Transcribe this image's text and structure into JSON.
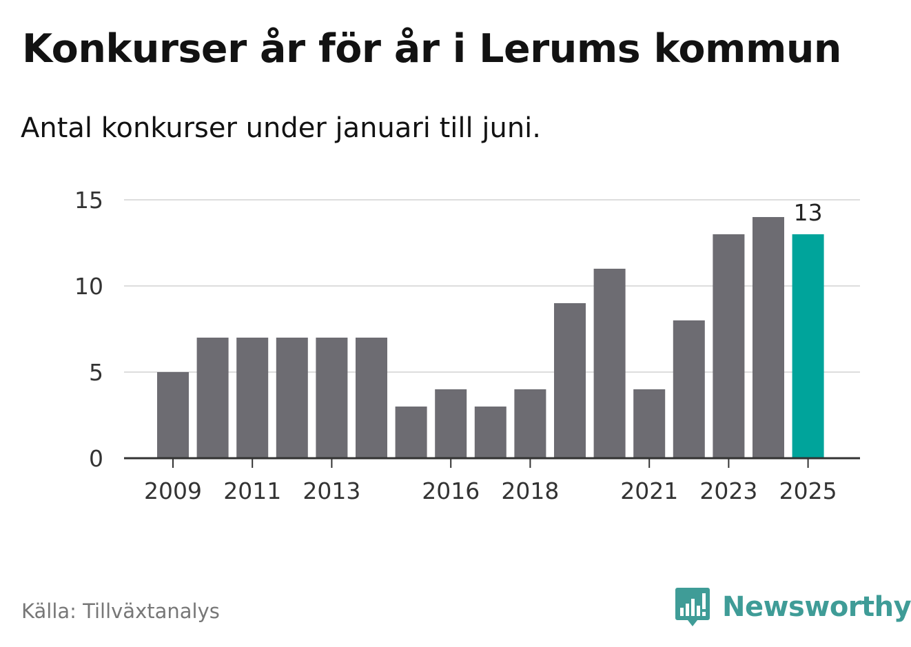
{
  "title": "Konkurser år för år i Lerums kommun",
  "subtitle": "Antal konkurser under januari till juni.",
  "source": "Källa: Tillväxtanalys",
  "brand": {
    "name": "Newsworthy",
    "icon": "bar-chart-speech-bubble-icon",
    "color": "#3f9c97"
  },
  "colors": {
    "bar": "#6d6c72",
    "highlight": "#00a49b",
    "grid": "#dddddd",
    "axis": "#333333"
  },
  "chart_data": {
    "type": "bar",
    "title": "Konkurser år för år i Lerums kommun",
    "subtitle": "Antal konkurser under januari till juni.",
    "categories": [
      "2009",
      "2010",
      "2011",
      "2012",
      "2013",
      "2014",
      "2015",
      "2016",
      "2017",
      "2018",
      "2019",
      "2020",
      "2021",
      "2022",
      "2023",
      "2024",
      "2025"
    ],
    "values": [
      5,
      7,
      7,
      7,
      7,
      7,
      3,
      4,
      3,
      4,
      9,
      11,
      4,
      8,
      13,
      14,
      13
    ],
    "x_tick_labels": [
      "2009",
      "2011",
      "2013",
      "2016",
      "2018",
      "2021",
      "2023",
      "2025"
    ],
    "y_ticks": [
      0,
      5,
      10,
      15
    ],
    "ylim": [
      0,
      15
    ],
    "xlabel": "",
    "ylabel": "",
    "grid": true,
    "legend": "none",
    "highlight": {
      "category": "2025",
      "label": "13"
    }
  }
}
